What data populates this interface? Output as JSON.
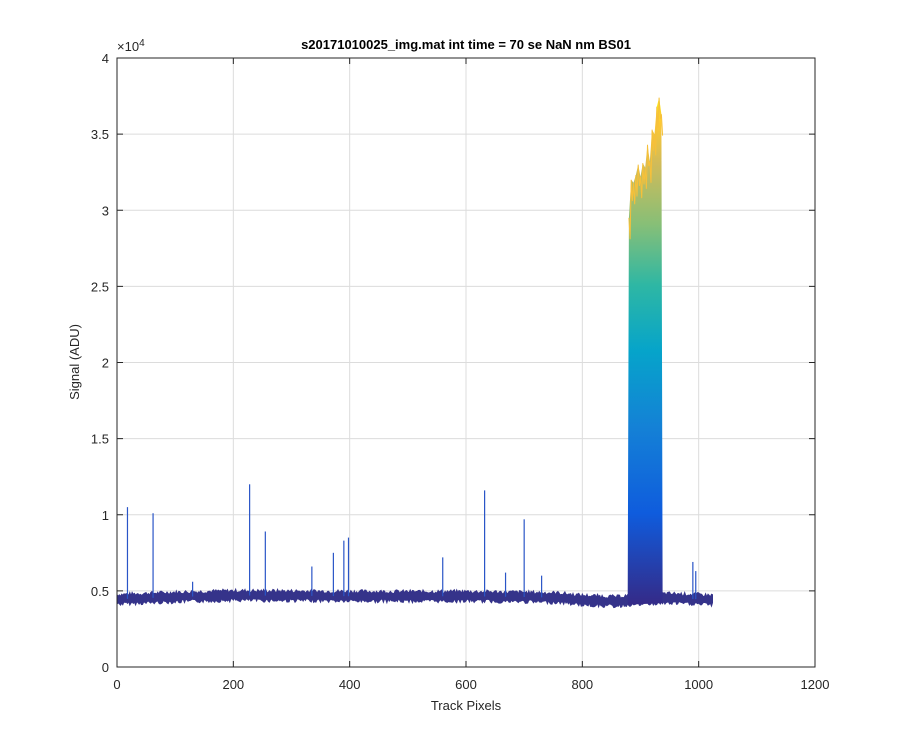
{
  "chart_data": {
    "type": "line",
    "title": "s20171010025_img.mat int time = 70 se  NaN nm BS01",
    "xlabel": "Track Pixels",
    "ylabel": "Signal (ADU)",
    "xlim": [
      0,
      1200
    ],
    "ylim": [
      0,
      40000
    ],
    "x_ticks": [
      0,
      200,
      400,
      600,
      800,
      1000,
      1200
    ],
    "x_tick_labels": [
      "0",
      "200",
      "400",
      "600",
      "800",
      "1000",
      "1200"
    ],
    "y_ticks": [
      0,
      5000,
      10000,
      15000,
      20000,
      25000,
      30000,
      35000,
      40000
    ],
    "y_tick_labels": [
      "0",
      "0.5",
      "1",
      "1.5",
      "2",
      "2.5",
      "3",
      "3.5",
      "4"
    ],
    "y_exponent_label": "×10",
    "y_exponent": "4",
    "grid": true,
    "colormap": "parula",
    "baseline": {
      "x": [
        0,
        100,
        200,
        300,
        400,
        500,
        600,
        700,
        760,
        800,
        860,
        880,
        940,
        960,
        1000,
        1024
      ],
      "y": [
        4450,
        4600,
        4700,
        4680,
        4650,
        4640,
        4650,
        4600,
        4550,
        4400,
        4300,
        4400,
        4500,
        4500,
        4450,
        4400
      ]
    },
    "spikes": {
      "x": [
        18,
        62,
        130,
        228,
        255,
        335,
        372,
        390,
        398,
        560,
        632,
        668,
        700,
        730,
        990,
        995
      ],
      "y": [
        10500,
        10100,
        5600,
        12000,
        8900,
        6600,
        7500,
        8300,
        8500,
        7200,
        11600,
        6200,
        9700,
        6000,
        6900,
        6300
      ]
    },
    "peak_band": {
      "x_start": 878,
      "x_end": 938,
      "x": [
        878,
        880,
        884,
        888,
        892,
        896,
        900,
        904,
        908,
        912,
        916,
        920,
        924,
        928,
        932,
        936,
        938
      ],
      "y": [
        4600,
        29500,
        32000,
        31800,
        32300,
        33000,
        32200,
        33100,
        32800,
        34300,
        33200,
        35300,
        35000,
        36800,
        37400,
        36300,
        5000
      ]
    },
    "colors": {
      "baseline": "#35338a",
      "spike": "#2a55c7",
      "parula_low": "#352a87",
      "parula_mid": "#0fa4c7",
      "parula_high": "#f9fb0e",
      "background": "#ffffff",
      "grid": "#dcdcdc",
      "axis": "#262626"
    }
  }
}
